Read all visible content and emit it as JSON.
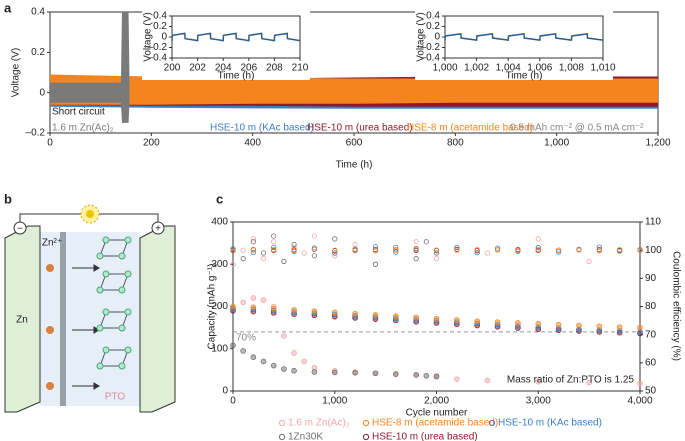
{
  "chart_data": [
    {
      "type": "band",
      "panel_label": "a",
      "xlabel": "Time (h)",
      "ylabel": "Voltage (V)",
      "xlim": [
        0,
        1200
      ],
      "xticks": [
        0,
        200,
        400,
        600,
        800,
        {
          "value": 1000,
          "label": "1,000"
        },
        {
          "value": 1200,
          "label": "1,200"
        }
      ],
      "ylim": [
        -0.2,
        0.4
      ],
      "yticks": [
        {
          "value": -0.2,
          "label": "–0.2"
        },
        0,
        0.2,
        0.4
      ],
      "annotations": [
        "Short circuit",
        "0.5 mAh cm⁻² @ 0.5 mA cm⁻²"
      ],
      "series": [
        {
          "name": "HSE-10 m (KAc based)",
          "color": "#3a7fc1",
          "x": [
            0,
            200,
            400,
            600,
            800,
            1000,
            1200
          ],
          "upper": [
            0.07,
            0.07,
            0.068,
            0.066,
            0.065,
            0.065,
            0.065
          ],
          "lower": [
            -0.07,
            -0.075,
            -0.078,
            -0.08,
            -0.08,
            -0.08,
            -0.08
          ]
        },
        {
          "name": "HSE-10 m (urea based)",
          "color": "#8b1a2b",
          "x": [
            0,
            200,
            400,
            600,
            800,
            1000,
            1200
          ],
          "upper": [
            0.08,
            0.07,
            0.07,
            0.075,
            0.08,
            0.08,
            0.08
          ],
          "lower": [
            -0.06,
            -0.065,
            -0.065,
            -0.07,
            -0.07,
            -0.07,
            -0.07
          ]
        },
        {
          "name": "HSE-8 m (acetamide based)",
          "color": "#f5841f",
          "x": [
            0,
            200,
            400,
            600,
            800,
            1000,
            1200
          ],
          "upper": [
            0.09,
            0.08,
            0.075,
            0.07,
            0.07,
            0.07,
            0.07
          ],
          "lower": [
            -0.06,
            -0.06,
            -0.055,
            -0.055,
            -0.05,
            -0.05,
            -0.05
          ]
        },
        {
          "name": "1.6 m Zn(Ac)₂",
          "color": "#7a7a7a",
          "x": [
            0,
            140,
            142,
            155,
            157
          ],
          "upper": [
            0.05,
            0.05,
            0.4,
            0.4,
            0.05
          ],
          "lower": [
            -0.05,
            -0.05,
            -0.15,
            -0.15,
            -0.05
          ]
        }
      ],
      "insets": [
        {
          "xlabel": "Time (h)",
          "ylabel": "Voltage (V)",
          "color": "#2b5d8a",
          "xlim": [
            200,
            210
          ],
          "xticks": [
            200,
            202,
            204,
            206,
            208,
            210
          ],
          "ylim": [
            -0.4,
            0.4
          ],
          "yticks": [
            {
              "value": -0.4,
              "label": "–0.4"
            },
            {
              "value": -0.2,
              "label": "–0.2"
            },
            0,
            0.2,
            0.4
          ],
          "x": [
            200,
            200.02,
            201,
            201.02,
            202,
            202.02,
            203,
            203.02,
            204,
            204.02,
            205,
            205.02,
            206,
            206.02,
            207,
            207.02,
            208,
            208.02,
            209,
            209.02,
            210
          ],
          "values": [
            -0.07,
            0.03,
            0.07,
            -0.03,
            -0.07,
            0.03,
            0.07,
            -0.03,
            -0.07,
            0.03,
            0.07,
            -0.03,
            -0.07,
            0.03,
            0.07,
            -0.03,
            -0.07,
            0.03,
            0.07,
            -0.03,
            -0.07
          ]
        },
        {
          "xlabel": "Time (h)",
          "ylabel": "Voltage (V)",
          "color": "#2b5d8a",
          "xlim": [
            1000,
            1010
          ],
          "xticks": [
            {
              "value": 1000,
              "label": "1,000"
            },
            {
              "value": 1002,
              "label": "1,002"
            },
            {
              "value": 1004,
              "label": "1,004"
            },
            {
              "value": 1006,
              "label": "1,006"
            },
            {
              "value": 1008,
              "label": "1,008"
            },
            {
              "value": 1010,
              "label": "1,010"
            }
          ],
          "ylim": [
            -0.4,
            0.4
          ],
          "yticks": [
            {
              "value": -0.4,
              "label": "–0.4"
            },
            {
              "value": -0.2,
              "label": "–0.2"
            },
            0,
            0.2,
            0.4
          ],
          "x": [
            1000,
            1000.02,
            1001,
            1001.02,
            1002,
            1002.02,
            1003,
            1003.02,
            1004,
            1004.02,
            1005,
            1005.02,
            1006,
            1006.02,
            1007,
            1007.02,
            1008,
            1008.02,
            1009,
            1009.02,
            1010
          ],
          "values": [
            -0.06,
            0.02,
            0.06,
            -0.02,
            -0.06,
            0.02,
            0.06,
            -0.02,
            -0.06,
            0.02,
            0.06,
            -0.02,
            -0.06,
            0.02,
            0.06,
            -0.02,
            -0.06,
            0.02,
            0.06,
            -0.02,
            -0.06
          ]
        }
      ]
    },
    {
      "type": "scatter",
      "panel_label": "c",
      "xlabel": "Cycle number",
      "ylabel": "Capacity (mAh g⁻¹)",
      "y2label": "Coulombic efficiency (%)",
      "xlim": [
        0,
        4000
      ],
      "xticks": [
        0,
        {
          "value": 1000,
          "label": "1,000"
        },
        {
          "value": 2000,
          "label": "2,000"
        },
        {
          "value": 3000,
          "label": "3,000"
        },
        {
          "value": 4000,
          "label": "4,000"
        }
      ],
      "ylim": [
        0,
        400
      ],
      "yticks": [
        0,
        100,
        200,
        300,
        400
      ],
      "y2lim": [
        50,
        110
      ],
      "y2ticks": [
        50,
        60,
        70,
        80,
        90,
        100,
        110
      ],
      "reference": {
        "value": 140,
        "label": "70%"
      },
      "annotation": "Mass ratio of Zn:PTO is 1.25",
      "series": [
        {
          "name": "1.6 m Zn(Ac)₂",
          "color": "#f4a6a8",
          "x": [
            0,
            100,
            200,
            300,
            400,
            500,
            600,
            700,
            800,
            1000,
            1200,
            1400,
            1600,
            1800,
            2000,
            2200,
            2500,
            3000,
            3500,
            4000
          ],
          "values": [
            195,
            210,
            220,
            215,
            200,
            130,
            90,
            70,
            55,
            48,
            45,
            42,
            40,
            38,
            36,
            28,
            25,
            22,
            20,
            18
          ],
          "ce": [
            95,
            100,
            104,
            97,
            103,
            96,
            101,
            99,
            105,
            98,
            102,
            95,
            100,
            103,
            97,
            101,
            99,
            104,
            96,
            100
          ]
        },
        {
          "name": "1Zn30K",
          "color": "#707070",
          "x": [
            0,
            100,
            200,
            300,
            400,
            500,
            600,
            800,
            1000,
            1200,
            1400,
            1600,
            1800,
            1900,
            2000
          ],
          "values": [
            108,
            95,
            80,
            70,
            60,
            52,
            48,
            45,
            44,
            43,
            42,
            40,
            38,
            36,
            34
          ],
          "ce": [
            100,
            97,
            103,
            99,
            105,
            96,
            102,
            98,
            104,
            100,
            95,
            101,
            97,
            103,
            99
          ]
        },
        {
          "name": "HSE-10 m (urea based)",
          "color": "#8b1a2b",
          "x": [
            0,
            200,
            400,
            600,
            800,
            1000,
            1200,
            1400,
            1600,
            1800,
            2000,
            2200,
            2400,
            2600,
            2800,
            3000,
            3200,
            3400,
            3600,
            3800,
            4000
          ],
          "values": [
            190,
            188,
            185,
            182,
            179,
            176,
            173,
            170,
            167,
            164,
            161,
            158,
            155,
            152,
            149,
            146,
            144,
            142,
            140,
            138,
            136
          ],
          "ce": [
            100.0,
            100.2,
            99.9,
            100.1,
            100.3,
            99.8,
            100.0,
            100.2,
            100.1,
            99.9,
            100.0,
            100.3,
            99.8,
            100.1,
            100.2,
            99.9,
            100.0,
            100.1,
            100.2,
            99.9,
            100.0
          ]
        },
        {
          "name": "HSE-10 m (KAc based)",
          "color": "#3a7fc1",
          "x": [
            0,
            200,
            400,
            600,
            800,
            1000,
            1200,
            1400,
            1600,
            1800,
            2000,
            2200,
            2400,
            2600,
            2800,
            3000,
            3200,
            3400,
            3600,
            3800,
            4000
          ],
          "values": [
            195,
            193,
            190,
            187,
            184,
            181,
            178,
            175,
            172,
            169,
            166,
            163,
            160,
            157,
            154,
            151,
            148,
            146,
            144,
            142,
            140
          ],
          "ce": [
            100.5,
            99.2,
            101.0,
            99.5,
            100.8,
            99.0,
            100.4,
            101.2,
            99.3,
            100.6,
            99.8,
            101.0,
            99.1,
            100.7,
            99.6,
            100.9,
            99.4,
            100.3,
            101.1,
            99.7,
            100.2
          ]
        },
        {
          "name": "HSE-8 m (acetamide based)",
          "color": "#f5841f",
          "x": [
            0,
            200,
            400,
            600,
            800,
            1000,
            1200,
            1400,
            1600,
            1800,
            2000,
            2200,
            2400,
            2600,
            2800,
            3000,
            3200,
            3400,
            3600,
            3800,
            4000
          ],
          "values": [
            200,
            198,
            195,
            192,
            189,
            186,
            183,
            180,
            177,
            174,
            171,
            168,
            165,
            163,
            161,
            159,
            157,
            155,
            153,
            151,
            150
          ],
          "ce": [
            99.8,
            100.1,
            100.2,
            99.9,
            100.3,
            100.0,
            100.2,
            99.8,
            100.1,
            100.3,
            99.9,
            100.0,
            100.2,
            100.1,
            99.9,
            100.3,
            100.0,
            100.1,
            99.8,
            100.2,
            100.0
          ]
        }
      ]
    }
  ],
  "diagram": {
    "panel_label": "b",
    "labels": {
      "minus": "−",
      "plus": "+",
      "zn": "Zn",
      "ion": "Zn²⁺",
      "pto": "PTO"
    }
  }
}
